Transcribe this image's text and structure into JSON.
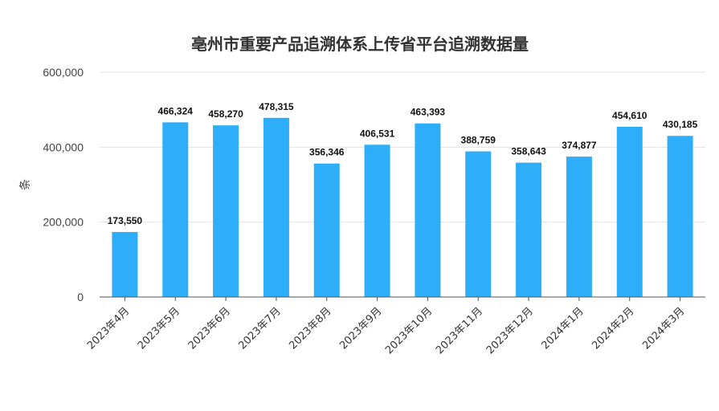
{
  "chart_data": {
    "type": "bar",
    "title": "亳州市重要产品追溯体系上传省平台追溯数据量",
    "ylabel": "条",
    "xlabel": "",
    "categories": [
      "2023年4月",
      "2023年5月",
      "2023年6月",
      "2023年7月",
      "2023年8月",
      "2023年9月",
      "2023年10月",
      "2023年11月",
      "2023年12月",
      "2024年1月",
      "2024年2月",
      "2024年3月"
    ],
    "values": [
      173550,
      466324,
      458270,
      478315,
      356346,
      406531,
      463393,
      388759,
      358643,
      374877,
      454610,
      430185
    ],
    "value_labels": [
      "173,550",
      "466,324",
      "458,270",
      "478,315",
      "356,346",
      "406,531",
      "463,393",
      "388,759",
      "358,643",
      "374,877",
      "454,610",
      "430,185"
    ],
    "yticks": [
      0,
      200000,
      400000,
      600000
    ],
    "ytick_labels": [
      "0",
      "200,000",
      "400,000",
      "600,000"
    ],
    "ylim": [
      0,
      600000
    ],
    "grid": true,
    "legend": "none",
    "bar_color": "#2eaef9"
  }
}
